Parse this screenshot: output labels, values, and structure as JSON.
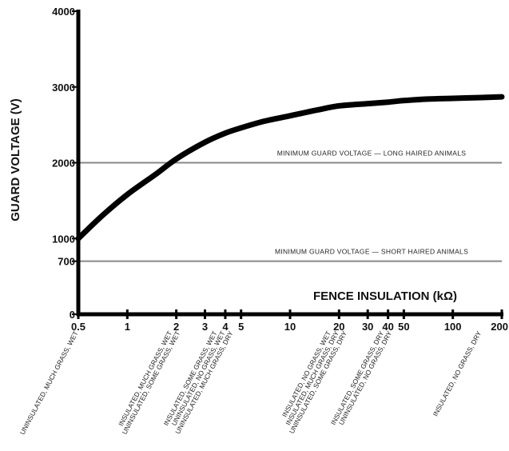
{
  "chart_data": {
    "type": "line",
    "title": "",
    "xlabel": "FENCE INSULATION (kΩ)",
    "ylabel": "GUARD VOLTAGE (V)",
    "x_scale": "log",
    "xlim": [
      0.5,
      200
    ],
    "ylim": [
      0,
      4000
    ],
    "x_ticks": [
      0.5,
      1,
      2,
      3,
      4,
      5,
      10,
      20,
      30,
      40,
      50,
      100,
      200
    ],
    "x_tick_labels": [
      "0.5",
      "1",
      "2",
      "3",
      "4",
      "5",
      "10",
      "20",
      "30",
      "40",
      "50",
      "100",
      "200"
    ],
    "y_ticks": [
      0,
      700,
      1000,
      2000,
      3000,
      4000
    ],
    "y_tick_labels": [
      "0",
      "700",
      "1000",
      "2000",
      "3000",
      "4000"
    ],
    "series": [
      {
        "name": "",
        "color": "#000000",
        "x": [
          0.5,
          0.7,
          1,
          1.5,
          2,
          3,
          4,
          5,
          7,
          10,
          15,
          20,
          30,
          40,
          50,
          70,
          100,
          150,
          200
        ],
        "values": [
          1000,
          1300,
          1580,
          1850,
          2050,
          2270,
          2390,
          2460,
          2550,
          2620,
          2700,
          2750,
          2780,
          2800,
          2820,
          2840,
          2850,
          2860,
          2870
        ]
      }
    ],
    "reference_lines": [
      {
        "label": "MINIMUM GUARD VOLTAGE — LONG HAIRED ANIMALS",
        "y": 2000,
        "color": "#888888"
      },
      {
        "label": "MINIMUM GUARD VOLTAGE — SHORT HAIRED ANIMALS",
        "y": 700,
        "color": "#888888"
      }
    ],
    "conditions": [
      {
        "x": 0.5,
        "lines": [
          "UNINSULATED, MUCH GRASS, WET"
        ]
      },
      {
        "x": 2,
        "lines": [
          "INSULATED, MUCH GRASS, WET",
          "UNINSULATED, SOME GRASS, WET"
        ]
      },
      {
        "x": 4,
        "lines": [
          "INSULATED, SOME GRASS, WET",
          "UNINSULATED, NO GRASS, WET",
          "UNINSULATED, MUCH GRASS, DRY"
        ]
      },
      {
        "x": 20,
        "lines": [
          "INSULATED, NO GRASS, WET",
          "INSULATED, MUCH GRASS, DRY",
          "UNINSULATED, SOME GRASS, DRY"
        ]
      },
      {
        "x": 40,
        "lines": [
          "INSULATED, SOME GRASS, DRY",
          "UNINSULATED, NO GRASS, DRY"
        ]
      },
      {
        "x": 150,
        "lines": [
          "INSULATED, NO GRASS, DRY"
        ]
      }
    ],
    "grid": false,
    "legend": "none"
  }
}
